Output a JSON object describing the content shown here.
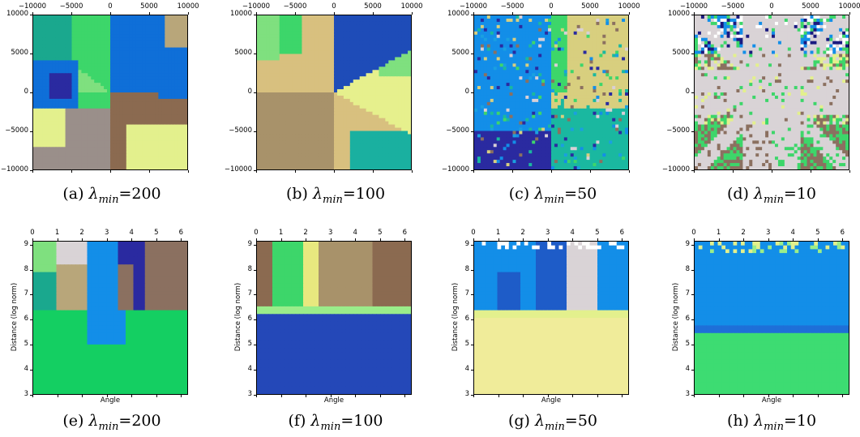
{
  "figures": [
    {
      "caption": {
        "prefix": "(a) ",
        "symbol": "λ",
        "sub": "min",
        "suffix": "=200"
      },
      "xticks": [
        "−10000",
        "−5000",
        "0",
        "5000",
        "10000"
      ],
      "yticks": [
        "10000",
        "5000",
        "0",
        "−5000",
        "−10000"
      ],
      "palette": [
        "#3dd66a",
        "#1aa88e",
        "#8a9a5b",
        "#0f6fd8",
        "#b8a67a",
        "#9a8f8a",
        "#e3f08d",
        "#8b6a50",
        "#2a2aa0",
        "#7fe07f"
      ]
    },
    {
      "caption": {
        "prefix": "(b) ",
        "symbol": "λ",
        "sub": "min",
        "suffix": "=100"
      },
      "xticks": [
        "−10000",
        "−5000",
        "0",
        "5000",
        "10000"
      ],
      "yticks": [
        "10000",
        "5000",
        "0",
        "−5000",
        "−10000"
      ],
      "palette": [
        "#d8c07f",
        "#a8926a",
        "#e6f08d",
        "#1e4cb8",
        "#1ab0a0",
        "#7fe07f",
        "#3dd66a",
        "#8b7060"
      ]
    },
    {
      "caption": {
        "prefix": "(c) ",
        "symbol": "λ",
        "sub": "min",
        "suffix": "=50"
      },
      "xticks": [
        "−10000",
        "−5000",
        "0",
        "5000",
        "10000"
      ],
      "yticks": [
        "10000",
        "5000",
        "0",
        "−5000",
        "−10000"
      ],
      "palette": [
        "#138ee8",
        "#1aa0e0",
        "#d8cf7f",
        "#1ab8a0",
        "#3dd66a",
        "#2a2aa0",
        "#d9d0d6",
        "#8b7060"
      ]
    },
    {
      "caption": {
        "prefix": "(d) ",
        "symbol": "λ",
        "sub": "min",
        "suffix": "=10"
      },
      "xticks": [
        "−10000",
        "−5000",
        "0",
        "5000",
        "10000"
      ],
      "yticks": [
        "10000",
        "5000",
        "0",
        "−5000",
        "−10000"
      ],
      "palette": [
        "#d9d3d6",
        "#3dd66a",
        "#8b7060",
        "#1a1a80",
        "#138ee8",
        "#ffffff",
        "#e3f08d"
      ]
    },
    {
      "caption": {
        "prefix": "(e) ",
        "symbol": "λ",
        "sub": "min",
        "suffix": "=200"
      },
      "xticks": [
        "0",
        "1",
        "2",
        "3",
        "4",
        "5",
        "6"
      ],
      "yticks": [
        "9",
        "8",
        "7",
        "6",
        "5",
        "4",
        "3"
      ],
      "xlabel": "Angle",
      "ylabel": "Distance (log norm)",
      "palette": [
        "#14cf62",
        "#138ee8",
        "#1aa88e",
        "#b8a67a",
        "#8b7060",
        "#2a2aa0",
        "#d9d3d6",
        "#7fe07f"
      ]
    },
    {
      "caption": {
        "prefix": "(f) ",
        "symbol": "λ",
        "sub": "min",
        "suffix": "=100"
      },
      "xticks": [
        "0",
        "1",
        "2",
        "3",
        "4",
        "5",
        "6"
      ],
      "yticks": [
        "9",
        "8",
        "7",
        "6",
        "5",
        "4",
        "3"
      ],
      "xlabel": "Angle",
      "ylabel": "Distance (log norm)",
      "palette": [
        "#2448b8",
        "#9aed8a",
        "#3dd66a",
        "#a8926a",
        "#e8e87f",
        "#8b6a50"
      ]
    },
    {
      "caption": {
        "prefix": "(g) ",
        "symbol": "λ",
        "sub": "min",
        "suffix": "=50"
      },
      "xticks": [
        "0",
        "1",
        "2",
        "3",
        "4",
        "5",
        "6"
      ],
      "yticks": [
        "9",
        "8",
        "7",
        "6",
        "5",
        "4",
        "3"
      ],
      "xlabel": "Angle",
      "ylabel": "Distance (log norm)",
      "palette": [
        "#f0ec9a",
        "#e3f08d",
        "#138ee8",
        "#1e5cc8",
        "#d9d3d6",
        "#ffffff"
      ]
    },
    {
      "caption": {
        "prefix": "(h) ",
        "symbol": "λ",
        "sub": "min",
        "suffix": "=10"
      },
      "xticks": [
        "0",
        "1",
        "2",
        "3",
        "4",
        "5",
        "6"
      ],
      "yticks": [
        "9",
        "8",
        "7",
        "6",
        "5",
        "4",
        "3"
      ],
      "xlabel": "Angle",
      "ylabel": "Distance (log norm)",
      "palette": [
        "#3ddc72",
        "#138ee8",
        "#1e6fd8",
        "#9aed8a",
        "#e3f08d"
      ]
    }
  ]
}
